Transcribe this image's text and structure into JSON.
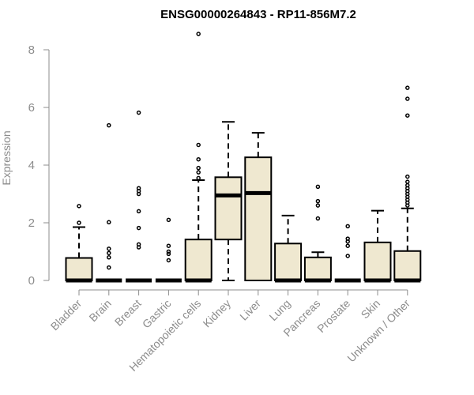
{
  "chart_data": {
    "type": "boxplot",
    "title": "ENSG00000264843 - RP11-856M7.2",
    "ylabel": "Expression",
    "ylim": [
      0,
      8.6
    ],
    "yticks": [
      0,
      2,
      4,
      6,
      8
    ],
    "box_fill": "#efe8d0",
    "categories": [
      "Bladder",
      "Brain",
      "Breast",
      "Gastric",
      "Hematopoietic cells",
      "Kidney",
      "Liver",
      "Lung",
      "Pancreas",
      "Prostate",
      "Skin",
      "Unknown / Other"
    ],
    "boxes": [
      {
        "q1": 0,
        "median": 0,
        "q3": 0.78,
        "whisker_low": 0,
        "whisker_high": 1.85,
        "outliers": [
          2.0,
          2.58
        ]
      },
      {
        "q1": 0,
        "median": 0,
        "q3": 0,
        "whisker_low": 0,
        "whisker_high": 0,
        "outliers": [
          0.45,
          0.8,
          0.95,
          1.1,
          2.02,
          5.38
        ]
      },
      {
        "q1": 0,
        "median": 0,
        "q3": 0,
        "whisker_low": 0,
        "whisker_high": 0,
        "outliers": [
          1.15,
          1.25,
          1.82,
          2.4,
          3.0,
          3.1,
          3.2,
          5.82
        ]
      },
      {
        "q1": 0,
        "median": 0,
        "q3": 0,
        "whisker_low": 0,
        "whisker_high": 0,
        "outliers": [
          0.7,
          0.92,
          1.0,
          1.2,
          2.1
        ]
      },
      {
        "q1": 0,
        "median": 0,
        "q3": 1.42,
        "whisker_low": 0,
        "whisker_high": 3.48,
        "outliers": [
          3.55,
          3.75,
          3.9,
          4.2,
          4.7,
          8.55
        ]
      },
      {
        "q1": 1.42,
        "median": 2.95,
        "q3": 3.58,
        "whisker_low": 0,
        "whisker_high": 5.5,
        "outliers": []
      },
      {
        "q1": 0,
        "median": 3.03,
        "q3": 4.27,
        "whisker_low": 0,
        "whisker_high": 5.12,
        "outliers": []
      },
      {
        "q1": 0,
        "median": 0,
        "q3": 1.28,
        "whisker_low": 0,
        "whisker_high": 2.25,
        "outliers": []
      },
      {
        "q1": 0,
        "median": 0,
        "q3": 0.8,
        "whisker_low": 0,
        "whisker_high": 0.98,
        "outliers": [
          2.15,
          2.6,
          2.75,
          3.25
        ]
      },
      {
        "q1": 0,
        "median": 0,
        "q3": 0,
        "whisker_low": 0,
        "whisker_high": 0,
        "outliers": [
          0.85,
          1.2,
          1.35,
          1.45,
          1.88
        ]
      },
      {
        "q1": 0,
        "median": 0,
        "q3": 1.32,
        "whisker_low": 0,
        "whisker_high": 2.42,
        "outliers": []
      },
      {
        "q1": 0,
        "median": 0,
        "q3": 1.02,
        "whisker_low": 0,
        "whisker_high": 2.5,
        "outliers": [
          2.6,
          2.7,
          2.8,
          2.9,
          3.0,
          3.1,
          3.2,
          3.3,
          3.42,
          3.6,
          5.72,
          6.3,
          6.68
        ]
      }
    ]
  }
}
